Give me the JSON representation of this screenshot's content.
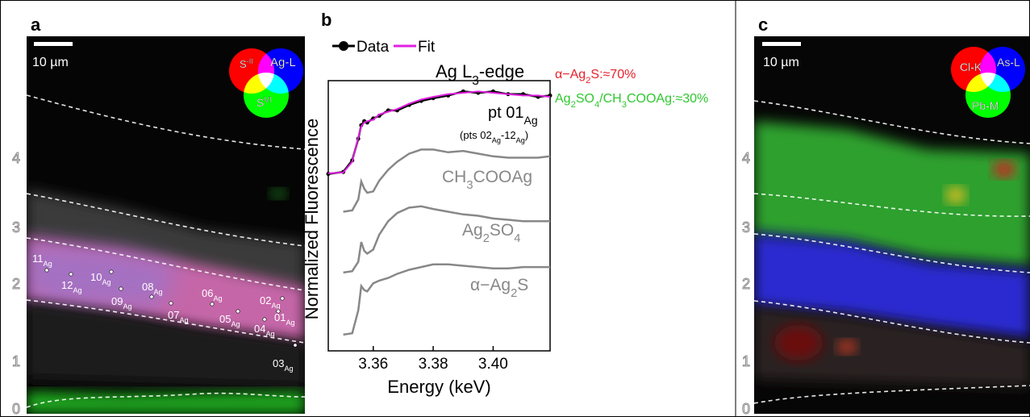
{
  "panels": {
    "a": {
      "letter": "a",
      "scale_bar": "10 µm",
      "wheel": [
        [
          "S",
          {
            "sup": "-II"
          }
        ],
        [
          "Ag-L"
        ],
        [
          "S",
          {
            "sup": "VI"
          }
        ]
      ],
      "layers": [
        "0",
        "1",
        "2",
        "3",
        "4"
      ],
      "points": [
        [
          "11",
          {
            "sub": "Ag"
          }
        ],
        [
          "12",
          {
            "sub": "Ag"
          }
        ],
        [
          "10",
          {
            "sub": "Ag"
          }
        ],
        [
          "09",
          {
            "sub": "Ag"
          }
        ],
        [
          "08",
          {
            "sub": "Ag"
          }
        ],
        [
          "07",
          {
            "sub": "Ag"
          }
        ],
        [
          "06",
          {
            "sub": "Ag"
          }
        ],
        [
          "05",
          {
            "sub": "Ag"
          }
        ],
        [
          "04",
          {
            "sub": "Ag"
          }
        ],
        [
          "02",
          {
            "sub": "Ag"
          }
        ],
        [
          "01",
          {
            "sub": "Ag"
          }
        ],
        [
          "03",
          {
            "sub": "Ag"
          }
        ]
      ]
    },
    "c": {
      "letter": "c",
      "scale_bar": "10 µm",
      "wheel": [
        [
          "Cl-K"
        ],
        [
          "As-L"
        ],
        [
          "Pb-M"
        ]
      ],
      "layers": [
        "0",
        "1",
        "2",
        "3",
        "4"
      ]
    }
  },
  "chart_data": {
    "type": "line",
    "letter": "b",
    "xlabel": "Energy (keV)",
    "ylabel": "Normalized Fluorescence",
    "edge_label": [
      "Ag L",
      {
        "sub": "3"
      },
      "-edge"
    ],
    "fit_result": [
      [
        "α−Ag",
        {
          "sub": "2"
        },
        "S:≈70%"
      ],
      [
        "Ag",
        {
          "sub": "2"
        },
        "SO",
        {
          "sub": "4"
        },
        "/CH",
        {
          "sub": "3"
        },
        "COOAg:≈30%"
      ]
    ],
    "fit_colors": [
      "#e8202a",
      "#2ec82e"
    ],
    "sample_label": [
      "pt 01",
      {
        "sub": "Ag"
      }
    ],
    "sample_note": [
      "(pts 02",
      {
        "sub": "Ag"
      },
      "-12",
      {
        "sub": "Ag"
      },
      ")"
    ],
    "xlim": [
      3.345,
      3.419
    ],
    "ylim": [
      0,
      10
    ],
    "xticks": [
      3.36,
      3.38,
      {
        "value": 3.4,
        "label": "3.40"
      }
    ],
    "x": [
      3.345,
      3.35,
      3.353,
      3.355,
      3.356,
      3.357,
      3.358,
      3.36,
      3.362,
      3.365,
      3.368,
      3.372,
      3.376,
      3.38,
      3.385,
      3.39,
      3.395,
      3.4,
      3.405,
      3.41,
      3.415,
      3.419
    ],
    "series": [
      {
        "name": "Data",
        "color": "#000000",
        "markers": true,
        "values": [
          6.55,
          6.62,
          7.05,
          7.85,
          8.35,
          8.5,
          8.45,
          8.6,
          8.7,
          8.9,
          8.9,
          9.1,
          9.25,
          9.35,
          9.45,
          9.6,
          9.55,
          9.6,
          9.5,
          9.5,
          9.4,
          9.45
        ]
      },
      {
        "name": "Fit",
        "color": "#e020e0",
        "values": [
          6.57,
          6.6,
          7.0,
          7.9,
          8.3,
          8.45,
          8.5,
          8.55,
          8.75,
          8.85,
          8.95,
          9.15,
          9.3,
          9.4,
          9.5,
          9.55,
          9.6,
          9.55,
          9.5,
          9.45,
          9.45,
          9.4
        ]
      },
      {
        "name": [
          "CH",
          {
            "sub": "3"
          },
          "COOAg"
        ],
        "color": "#888888",
        "values": [
          null,
          5.15,
          5.2,
          5.6,
          6.27,
          6.0,
          5.85,
          5.9,
          6.3,
          6.7,
          7.0,
          7.3,
          7.45,
          7.45,
          7.35,
          7.4,
          7.3,
          7.2,
          7.15,
          7.15,
          7.15,
          7.2
        ]
      },
      {
        "name": [
          "Ag",
          {
            "sub": "2"
          },
          "SO",
          {
            "sub": "4"
          }
        ],
        "color": "#888888",
        "values": [
          null,
          2.9,
          2.95,
          3.3,
          4.03,
          3.7,
          3.6,
          3.75,
          4.3,
          4.8,
          5.1,
          5.3,
          5.35,
          5.25,
          5.15,
          5.05,
          5.0,
          4.9,
          4.85,
          4.8,
          4.8,
          4.8
        ]
      },
      {
        "name": [
          "α−Ag",
          {
            "sub": "2"
          },
          "S"
        ],
        "color": "#888888",
        "values": [
          null,
          0.6,
          0.65,
          1.5,
          2.4,
          2.25,
          2.2,
          2.5,
          2.6,
          2.7,
          2.85,
          3.0,
          3.1,
          3.2,
          3.2,
          3.15,
          3.1,
          3.05,
          3.05,
          3.1,
          3.1,
          3.1
        ]
      }
    ]
  }
}
